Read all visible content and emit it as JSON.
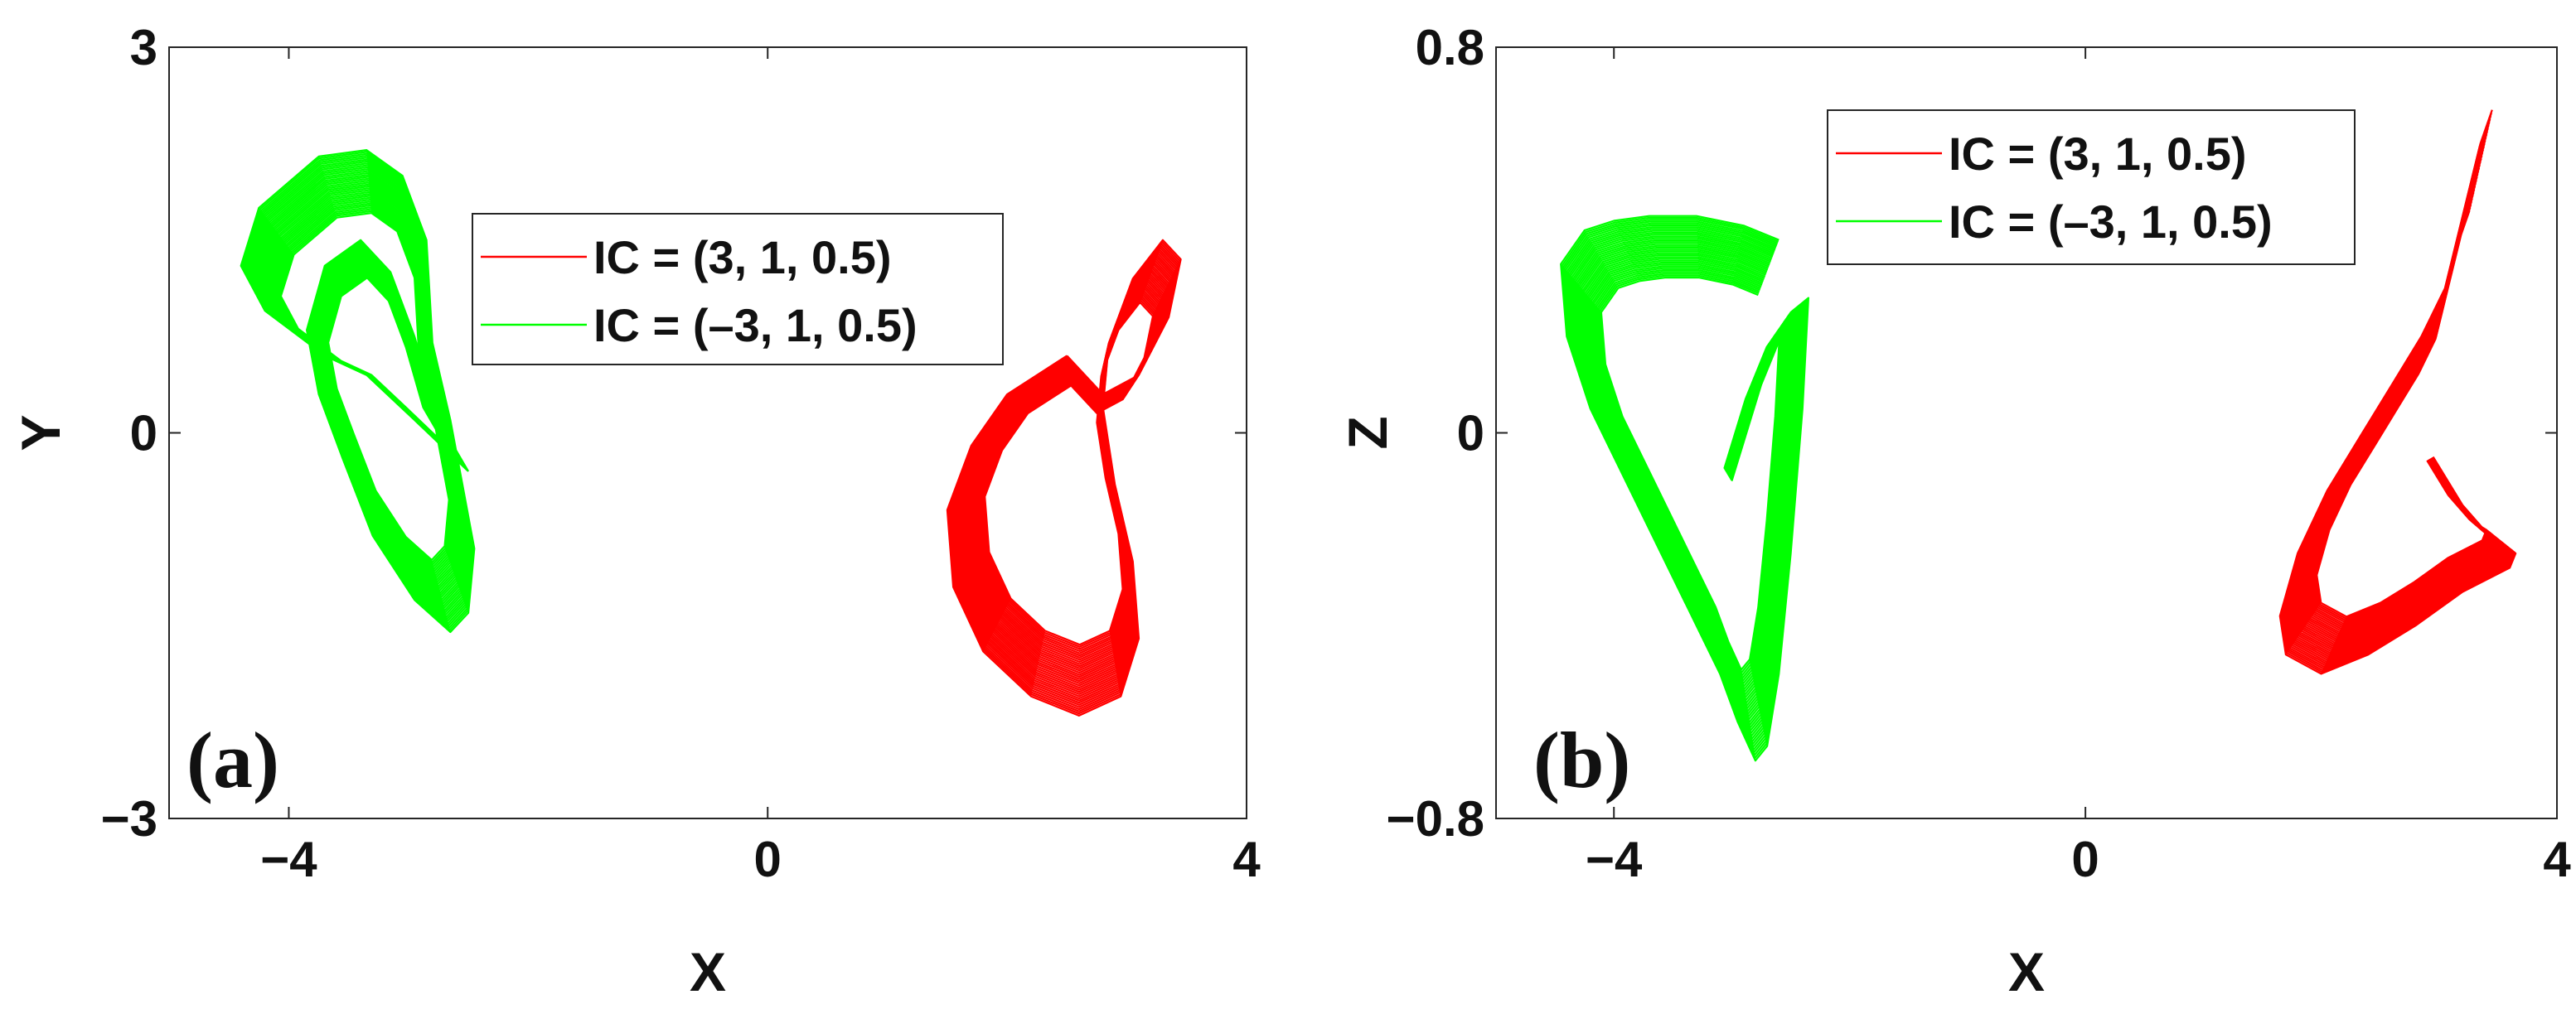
{
  "chart_data": [
    {
      "type": "line",
      "panel": "(a)",
      "xlabel": "X",
      "ylabel": "Y",
      "xlim": [
        -5,
        4
      ],
      "ylim": [
        -3,
        3
      ],
      "xticks": [
        -4,
        0,
        4
      ],
      "yticks": [
        -3,
        0,
        3
      ],
      "xtick_labels": [
        "−4",
        "0",
        "4"
      ],
      "ytick_labels": [
        "−3",
        "0",
        "3"
      ],
      "legend_position": "top-center",
      "series": [
        {
          "name": "IC = (3, 1, 0.5)",
          "color": "#ff0000",
          "x": [
            2.5,
            2.0,
            1.7,
            1.5,
            1.55,
            1.8,
            2.2,
            2.6,
            2.95,
            3.1,
            3.05,
            2.9,
            2.8,
            2.85,
            3.05,
            3.3,
            3.45,
            3.35,
            3.1,
            2.8,
            2.5
          ],
          "y": [
            0.6,
            0.3,
            -0.1,
            -0.6,
            -1.2,
            -1.7,
            -2.05,
            -2.2,
            -2.05,
            -1.6,
            -1.0,
            -0.4,
            0.2,
            0.7,
            1.2,
            1.5,
            1.35,
            0.9,
            0.45,
            0.3,
            0.6
          ]
        },
        {
          "name": "IC = (–3, 1, 0.5)",
          "color": "#00ff00",
          "x": [
            -2.5,
            -2.95,
            -3.35,
            -3.7,
            -4.2,
            -4.4,
            -4.25,
            -3.75,
            -3.35,
            -3.05,
            -2.85,
            -2.8,
            -2.65,
            -2.55,
            -2.45,
            -2.5,
            -2.65,
            -2.95,
            -3.3,
            -3.55,
            -3.75,
            -3.85,
            -3.7,
            -3.4,
            -3.15,
            -2.95,
            -2.75,
            -2.5
          ],
          "y": [
            -0.3,
            0.1,
            0.45,
            0.6,
            0.95,
            1.3,
            1.75,
            2.15,
            2.2,
            2.0,
            1.5,
            0.7,
            0.1,
            -0.4,
            -0.9,
            -1.4,
            -1.55,
            -1.3,
            -0.8,
            -0.2,
            0.3,
            0.8,
            1.3,
            1.5,
            1.25,
            0.75,
            0.1,
            -0.3
          ]
        }
      ]
    },
    {
      "type": "line",
      "panel": "(b)",
      "xlabel": "X",
      "ylabel": "Z",
      "xlim": [
        -5,
        4
      ],
      "ylim": [
        -0.8,
        0.8
      ],
      "xticks": [
        -4,
        0,
        4
      ],
      "yticks": [
        -0.8,
        0,
        0.8
      ],
      "xtick_labels": [
        "−4",
        "0",
        "4"
      ],
      "ytick_labels": [
        "−0.8",
        "0",
        "0.8"
      ],
      "legend_position": "top-right",
      "series": [
        {
          "name": "IC = (3, 1, 0.5)",
          "color": "#ff0000",
          "x": [
            3.45,
            3.35,
            3.2,
            3.05,
            2.85,
            2.6,
            2.35,
            2.05,
            1.8,
            1.65,
            1.7,
            2.0,
            2.4,
            2.8,
            3.2,
            3.6,
            3.65,
            3.45,
            3.2,
            2.95
          ],
          "y": [
            0.67,
            0.6,
            0.45,
            0.3,
            0.2,
            0.1,
            0.0,
            -0.12,
            -0.25,
            -0.38,
            -0.46,
            -0.5,
            -0.46,
            -0.4,
            -0.33,
            -0.28,
            -0.25,
            -0.22,
            -0.15,
            -0.05
          ]
        },
        {
          "name": "IC = (–3, 1, 0.5)",
          "color": "#00ff00",
          "x": [
            -2.6,
            -2.9,
            -3.3,
            -3.7,
            -4.0,
            -4.25,
            -4.45,
            -4.4,
            -4.2,
            -3.9,
            -3.6,
            -3.3,
            -3.1,
            -2.95,
            -2.8,
            -2.7,
            -2.6,
            -2.5,
            -2.4,
            -2.35,
            -2.5,
            -2.75,
            -3.0
          ],
          "y": [
            0.4,
            0.43,
            0.45,
            0.45,
            0.44,
            0.42,
            0.35,
            0.2,
            0.05,
            -0.1,
            -0.25,
            -0.4,
            -0.5,
            -0.6,
            -0.68,
            -0.65,
            -0.5,
            -0.25,
            0.05,
            0.28,
            0.25,
            0.1,
            -0.1
          ]
        }
      ]
    }
  ]
}
